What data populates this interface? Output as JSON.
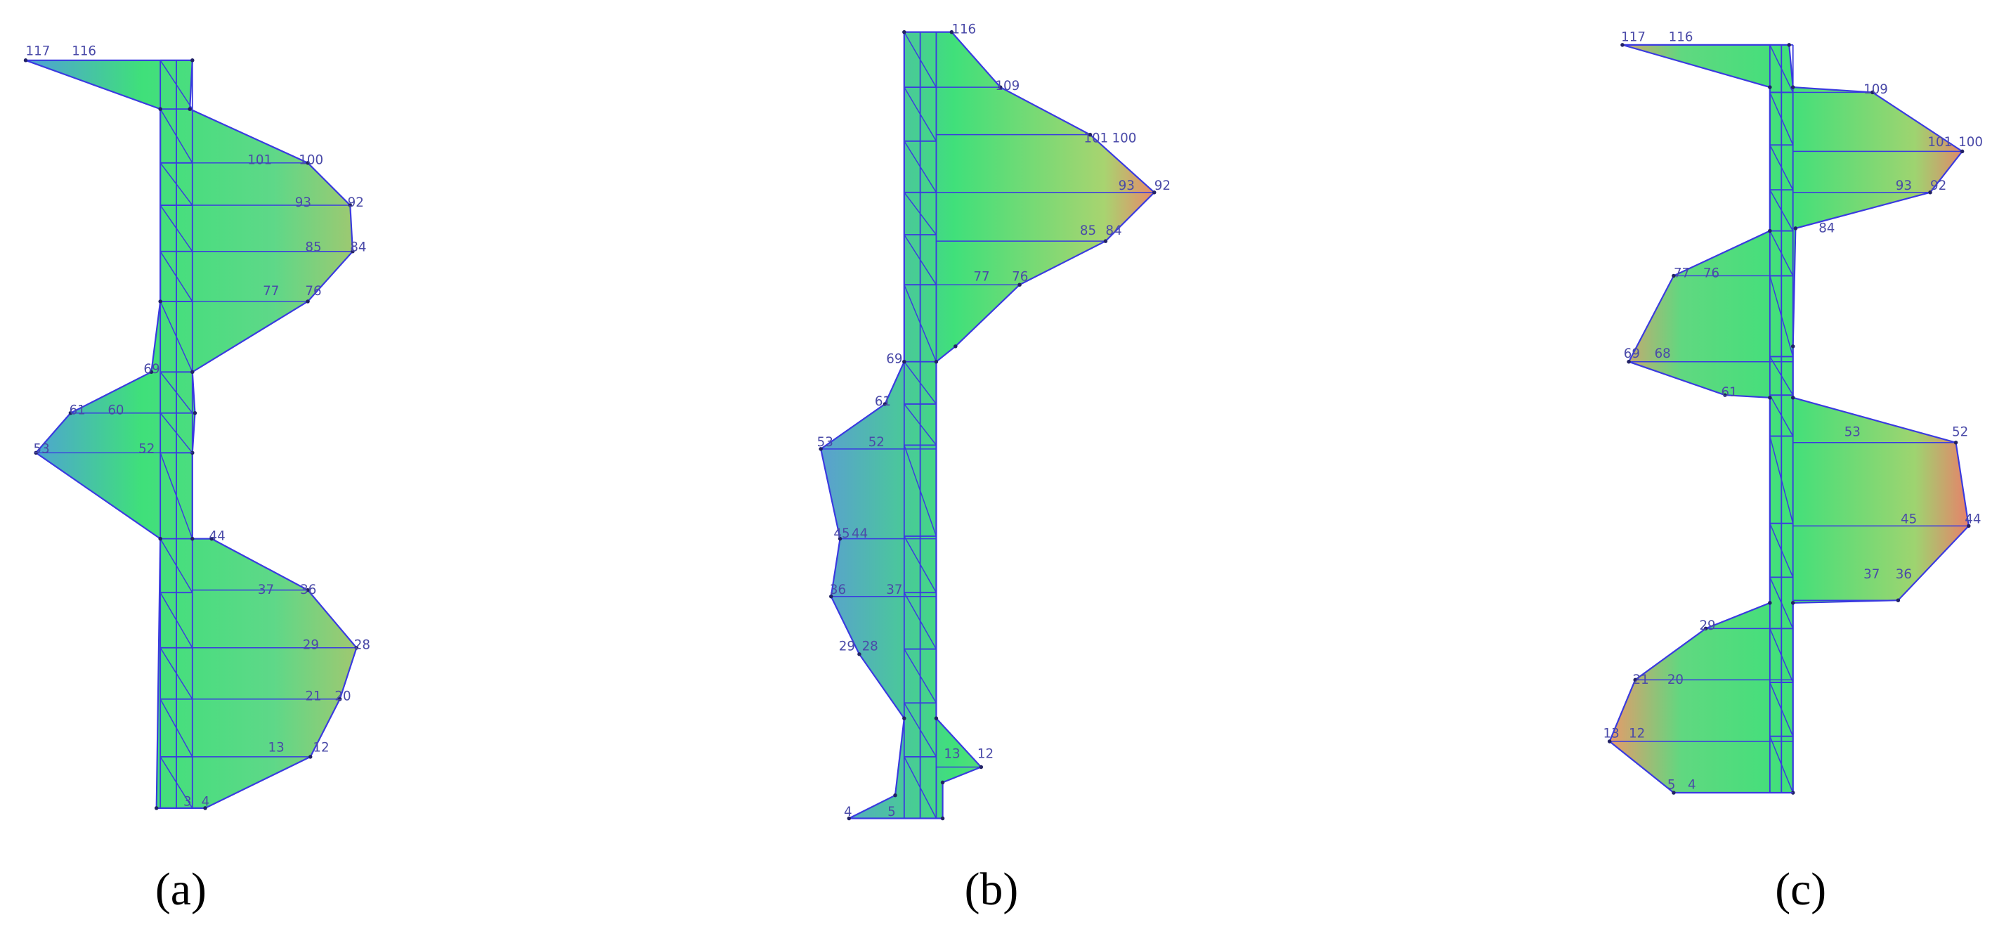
{
  "panels": [
    {
      "caption": "(a)",
      "node_labels": [
        "117",
        "116",
        "101",
        "100",
        "93",
        "92",
        "85",
        "84",
        "77",
        "76",
        "69",
        "61",
        "60",
        "53",
        "52",
        "44",
        "37",
        "36",
        "29",
        "28",
        "21",
        "20",
        "13",
        "12",
        "4",
        "3"
      ]
    },
    {
      "caption": "(b)",
      "node_labels": [
        "116",
        "109",
        "101",
        "100",
        "93",
        "92",
        "85",
        "84",
        "77",
        "76",
        "69",
        "61",
        "53",
        "52",
        "45",
        "44",
        "36",
        "37",
        "29",
        "28",
        "13",
        "12",
        "4",
        "5"
      ]
    },
    {
      "caption": "(c)",
      "node_labels": [
        "117",
        "116",
        "109",
        "101",
        "100",
        "93",
        "92",
        "84",
        "77",
        "76",
        "69",
        "68",
        "61",
        "53",
        "52",
        "45",
        "44",
        "37",
        "36",
        "29",
        "21",
        "20",
        "13",
        "12",
        "5",
        "4"
      ]
    }
  ]
}
